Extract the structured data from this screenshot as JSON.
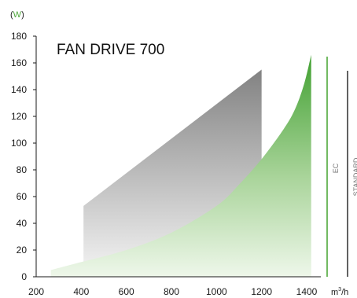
{
  "chart_data": {
    "type": "area",
    "title": "FAN DRIVE 700",
    "ylabel": {
      "open": "(",
      "unit": "W",
      "close": ")"
    },
    "xlabel": {
      "base": "m",
      "sup": "3",
      "tail": "/h"
    },
    "xlim": [
      200,
      1400
    ],
    "ylim": [
      0,
      180
    ],
    "x_ticks": [
      200,
      400,
      600,
      800,
      1000,
      1200,
      1400
    ],
    "y_ticks": [
      0,
      20,
      40,
      60,
      80,
      100,
      120,
      140,
      160,
      180
    ],
    "grid": false,
    "series": [
      {
        "name": "STANDARD",
        "color": "#8a8a8a",
        "x": [
          410,
          1200
        ],
        "lower": [
          4,
          4
        ],
        "upper": [
          53,
          155
        ]
      },
      {
        "name": "EC",
        "color": "#4fa83b",
        "x": [
          265,
          400,
          600,
          800,
          1000,
          1100,
          1200,
          1300,
          1350,
          1390,
          1420
        ],
        "lower": [
          0,
          0,
          0,
          0,
          0,
          0,
          0,
          0,
          0,
          0,
          0
        ],
        "upper": [
          5,
          11,
          20,
          33,
          53,
          69,
          88,
          111,
          126,
          145,
          166
        ]
      }
    ],
    "legend_placement": "right, vertical bars"
  }
}
